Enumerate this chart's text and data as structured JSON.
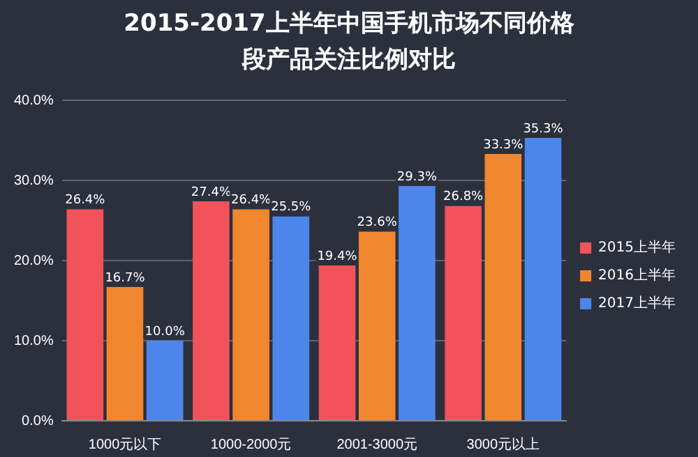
{
  "chart_data": {
    "type": "bar",
    "title": "2015-2017上半年中国手机市场不同价格段产品关注比例对比",
    "categories": [
      "1000元以下",
      "1000-2000元",
      "2001-3000元",
      "3000元以上"
    ],
    "series": [
      {
        "name": "2015上半年",
        "color": "#f2535a",
        "values": [
          26.4,
          27.4,
          19.4,
          26.8
        ],
        "value_labels": [
          "26.4%",
          "27.4%",
          "19.4%",
          "26.8%"
        ]
      },
      {
        "name": "2016上半年",
        "color": "#f0862e",
        "values": [
          16.7,
          26.4,
          23.6,
          33.3
        ],
        "value_labels": [
          "16.7%",
          "26.4%",
          "23.6%",
          "33.3%"
        ]
      },
      {
        "name": "2017上半年",
        "color": "#4d86ea",
        "values": [
          10.0,
          25.5,
          29.3,
          35.3
        ],
        "value_labels": [
          "10.0%",
          "25.5%",
          "29.3%",
          "35.3%"
        ]
      }
    ],
    "ylim": [
      0,
      40
    ],
    "yticks": [
      {
        "value": 0,
        "label": "0.0%"
      },
      {
        "value": 10,
        "label": "10.0%"
      },
      {
        "value": 20,
        "label": "20.0%"
      },
      {
        "value": 30,
        "label": "30.0%"
      },
      {
        "value": 40,
        "label": "40.0%"
      }
    ],
    "grid": "y",
    "legend": "right"
  }
}
